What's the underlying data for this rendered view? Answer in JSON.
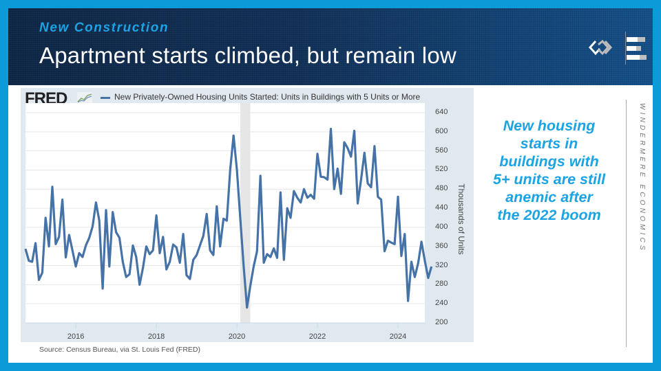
{
  "header": {
    "subtitle": "New Construction",
    "title": "Apartment starts climbed, but remain low"
  },
  "brand": {
    "logo_icon": "windermere-w-logo-icon",
    "menu_icon": "bars-icon",
    "vertical_text": "WINDERMERE ECONOMICS"
  },
  "callout": {
    "lines": [
      "New housing",
      "starts in",
      "buildings with",
      "5+ units are still",
      "anemic after",
      "the 2022 boom"
    ]
  },
  "fred": {
    "logo_text": "FRED",
    "source": "Source: Census Bureau, via St. Louis Fed (FRED)"
  },
  "colors": {
    "accent": "#1ba3e3",
    "series": "#4572a7",
    "chart_bg": "#e1e9f0",
    "recession": "#e6e6e6"
  },
  "chart_data": {
    "type": "line",
    "title": "",
    "legend": [
      "New Privately-Owned Housing Units Started: Units in Buildings with 5 Units or More"
    ],
    "legend_position": "top-left",
    "xlabel": "",
    "ylabel": "Thousands of Units",
    "ylim": [
      200,
      640
    ],
    "yticks": [
      200,
      240,
      280,
      320,
      360,
      400,
      440,
      480,
      520,
      560,
      600,
      640
    ],
    "xticks": [
      "2016",
      "2018",
      "2020",
      "2022",
      "2024"
    ],
    "xlim": [
      "2014-10",
      "2024-09"
    ],
    "grid": true,
    "recession_shading": [
      "2020-02",
      "2020-04"
    ],
    "series": [
      {
        "name": "New Privately-Owned Housing Units Started: Units in Buildings with 5 Units or More",
        "frequency": "monthly",
        "start": "2014-10",
        "values": [
          355,
          330,
          328,
          367,
          290,
          305,
          420,
          360,
          485,
          365,
          380,
          458,
          337,
          384,
          352,
          318,
          346,
          338,
          362,
          378,
          402,
          452,
          414,
          272,
          436,
          318,
          432,
          390,
          378,
          328,
          296,
          302,
          362,
          338,
          280,
          315,
          360,
          344,
          352,
          425,
          346,
          380,
          312,
          328,
          364,
          358,
          326,
          386,
          300,
          292,
          332,
          342,
          362,
          382,
          428,
          352,
          342,
          444,
          360,
          418,
          414,
          520,
          592,
          520,
          420,
          320,
          232,
          278,
          318,
          350,
          508,
          326,
          344,
          338,
          356,
          336,
          473,
          332,
          440,
          420,
          476,
          462,
          452,
          480,
          462,
          468,
          460,
          554,
          506,
          505,
          500,
          606,
          480,
          523,
          470,
          578,
          566,
          548,
          602,
          450,
          500,
          556,
          492,
          484,
          570,
          464,
          458,
          350,
          372,
          368,
          365,
          464,
          340,
          386,
          246,
          328,
          296,
          325,
          370,
          330,
          294,
          318
        ]
      }
    ]
  }
}
